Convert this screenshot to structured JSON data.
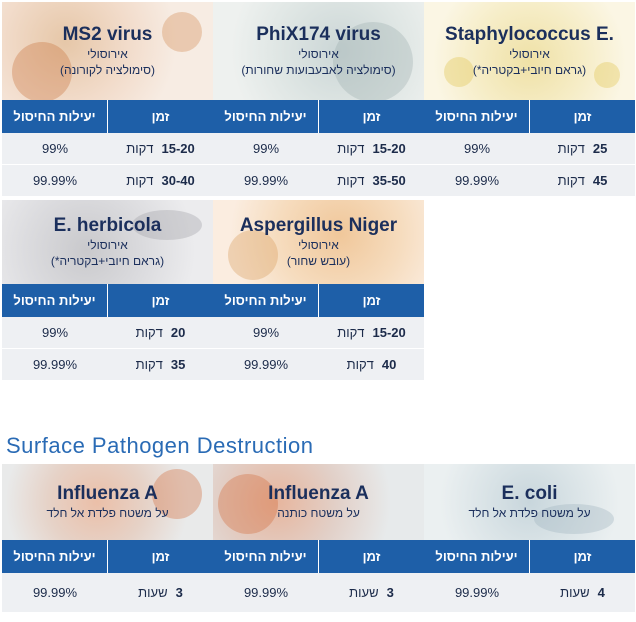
{
  "labels": {
    "time_header": "זמן",
    "efficiency_header": "יעילות החיסול"
  },
  "airborne": [
    {
      "name": "MS2 virus",
      "subtitle1": "אירוסולי",
      "subtitle2": "(סימולציה לקורונה)",
      "rows": [
        {
          "time_value": "15-20",
          "time_unit": "דקות",
          "efficiency": "99%"
        },
        {
          "time_value": "30-40",
          "time_unit": "דקות",
          "efficiency": "99.99%"
        }
      ]
    },
    {
      "name": "PhiX174 virus",
      "subtitle1": "אירוסולי",
      "subtitle2": "(סימולציה לאבעבועות שחורות)",
      "rows": [
        {
          "time_value": "15-20",
          "time_unit": "דקות",
          "efficiency": "99%"
        },
        {
          "time_value": "35-50",
          "time_unit": "דקות",
          "efficiency": "99.99%"
        }
      ]
    },
    {
      "name": "Staphylococcus E.",
      "subtitle1": "אירוסולי",
      "subtitle2": "(*גראם חיובי+בקטריה)",
      "rows": [
        {
          "time_value": "25",
          "time_unit": "דקות",
          "efficiency": "99%"
        },
        {
          "time_value": "45",
          "time_unit": "דקות",
          "efficiency": "99.99%"
        }
      ]
    },
    {
      "name": "E. herbicola",
      "subtitle1": "אירוסולי",
      "subtitle2": "(*גראם חיובי+בקטריה)",
      "rows": [
        {
          "time_value": "20",
          "time_unit": "דקות",
          "efficiency": "99%"
        },
        {
          "time_value": "35",
          "time_unit": "דקות",
          "efficiency": "99.99%"
        }
      ]
    },
    {
      "name": "Aspergillus Niger",
      "subtitle1": "אירוסולי",
      "subtitle2": "(עובש שחור)",
      "rows": [
        {
          "time_value": "15-20",
          "time_unit": "דקות",
          "efficiency": "99%"
        },
        {
          "time_value": "40",
          "time_unit": "דקות",
          "efficiency": "99.99%"
        }
      ]
    }
  ],
  "surface_title": "Surface Pathogen Destruction",
  "surface": [
    {
      "name": "Influenza A",
      "subtitle1": "על משטח פלדת אל חלד",
      "rows": [
        {
          "time_value": "3",
          "time_unit": "שעות",
          "efficiency": "99.99%"
        }
      ]
    },
    {
      "name": "Influenza A",
      "subtitle1": "על משטח כותנה",
      "rows": [
        {
          "time_value": "3",
          "time_unit": "שעות",
          "efficiency": "99.99%"
        }
      ]
    },
    {
      "name": "E. coli",
      "subtitle1": "על משטח פלדת אל חלד",
      "rows": [
        {
          "time_value": "4",
          "time_unit": "שעות",
          "efficiency": "99.99%"
        }
      ]
    }
  ]
}
